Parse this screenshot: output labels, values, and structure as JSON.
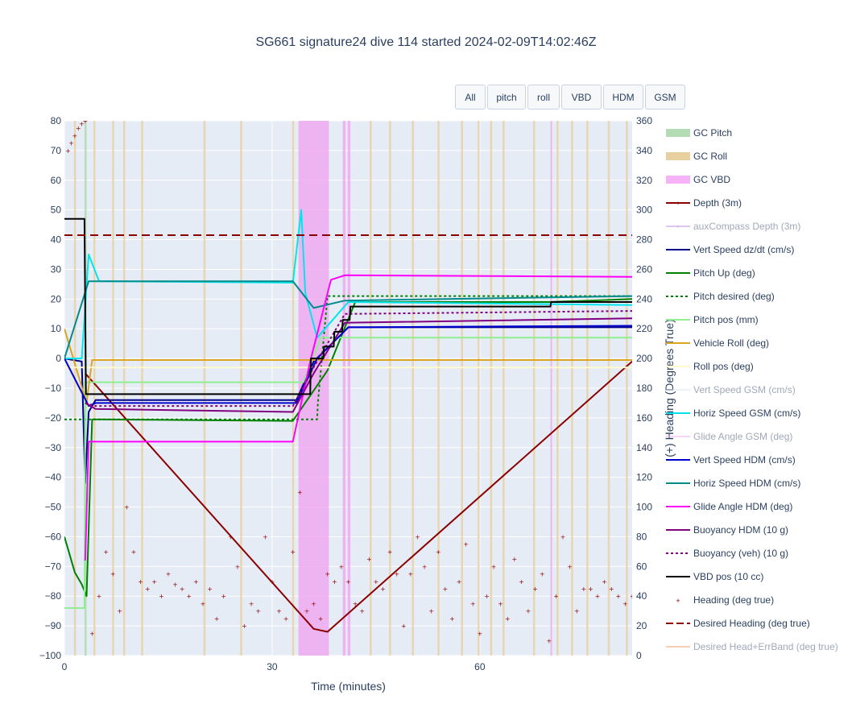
{
  "title": "SG661 signature24 dive 114 started 2024-02-09T14:02:46Z",
  "buttons": [
    "All",
    "pitch",
    "roll",
    "VBD",
    "HDM",
    "GSM"
  ],
  "chart_data": {
    "type": "line",
    "title": "SG661 signature24 dive 114 started 2024-02-09T14:02:46Z",
    "xlabel": "Time (minutes)",
    "ylabel": "",
    "y2label": "(+) Heading (Degrees True)",
    "xlim": [
      0,
      82
    ],
    "ylim": [
      -100,
      80
    ],
    "y2lim": [
      0,
      360
    ],
    "xticks": [
      0,
      30,
      60
    ],
    "yticks": [
      80,
      70,
      60,
      50,
      40,
      30,
      20,
      10,
      0,
      -10,
      -20,
      -30,
      -40,
      -50,
      -60,
      -70,
      -80,
      -90,
      -100
    ],
    "y2ticks": [
      360,
      340,
      320,
      300,
      280,
      260,
      240,
      220,
      200,
      180,
      160,
      140,
      120,
      100,
      80,
      60,
      40,
      20,
      0
    ],
    "legend_position": "right",
    "gc_vbd_bands": [
      [
        33.8,
        38.2
      ],
      [
        40.2,
        40.6
      ],
      [
        40.9,
        41.3
      ],
      [
        70.2,
        70.3
      ]
    ],
    "gc_pitch_bands": [
      [
        2.9,
        3.2
      ]
    ],
    "gc_roll_times": [
      1.5,
      4.3,
      7.0,
      8.6,
      11.2,
      20.2,
      25.5,
      33.0,
      44.2,
      47.0,
      50.3,
      54.0,
      57.4,
      59.8,
      61.6,
      63.4,
      67.8,
      71.2,
      73.3,
      75.5,
      78.6,
      81.2
    ],
    "series": [
      {
        "name": "Depth (3m)",
        "color": "#8b0000",
        "axis": "y",
        "x": [
          3.0,
          36.0,
          38.0,
          82.0
        ],
        "y": [
          -5,
          -91,
          -92,
          -1
        ]
      },
      {
        "name": "auxCompass Depth (3m)",
        "color": "#c090e0",
        "axis": "y",
        "x": [],
        "y": []
      },
      {
        "name": "Vert Speed dz/dt (cm/s)",
        "color": "#00008b",
        "axis": "y",
        "x": [
          0,
          2.5,
          3.0,
          3.5,
          4.5,
          33.5,
          36.0,
          41.0,
          82.0
        ],
        "y": [
          0,
          -1,
          -42,
          -18,
          -14,
          -14,
          -1,
          10.5,
          10.5
        ]
      },
      {
        "name": "Pitch Up (deg)",
        "color": "#008000",
        "axis": "y",
        "x": [
          0,
          1.5,
          2.5,
          3.2,
          4.0,
          33.0,
          38.0,
          42.0,
          70.0,
          82.0
        ],
        "y": [
          -60,
          -72,
          -76,
          -80,
          -20.5,
          -21,
          -4,
          19,
          19,
          20
        ]
      },
      {
        "name": "Pitch desired (deg)",
        "color": "#008000",
        "axis": "y",
        "dash": true,
        "x": [
          0,
          3.2,
          36.5,
          36.6,
          38.0,
          82.0
        ],
        "y": [
          -20.5,
          -20.5,
          -20.5,
          -15,
          21,
          21
        ]
      },
      {
        "name": "Pitch pos (mm)",
        "color": "#90ee90",
        "axis": "y",
        "x": [
          0,
          2.9,
          3.0,
          34.5,
          37.0,
          82.0
        ],
        "y": [
          -84,
          -84,
          -8,
          -8,
          7,
          7
        ]
      },
      {
        "name": "Vehicle Roll (deg)",
        "color": "#daa520",
        "axis": "y",
        "x": [
          0,
          3.2,
          4.0,
          36.0,
          82.0
        ],
        "y": [
          10,
          -15,
          -0.5,
          -0.5,
          -0.5
        ]
      },
      {
        "name": "Roll pos (deg)",
        "color": "#fffacd",
        "axis": "y",
        "x": [
          0,
          82.0
        ],
        "y": [
          -3,
          -3
        ]
      },
      {
        "name": "Vert Speed GSM (cm/s)",
        "color": "#d8e8f4",
        "axis": "y",
        "x": [],
        "y": []
      },
      {
        "name": "Horiz Speed GSM (cm/s)",
        "color": "#00e5ee",
        "axis": "y",
        "x": [
          0,
          2.5,
          3.5,
          5.0,
          33.0,
          34.2,
          34.8,
          36.5,
          41.0,
          82.0
        ],
        "y": [
          0,
          0,
          35,
          26,
          25.5,
          50,
          22,
          7,
          19,
          18
        ]
      },
      {
        "name": "Glide Angle GSM (deg)",
        "color": "#f0b0f0",
        "axis": "y",
        "x": [],
        "y": []
      },
      {
        "name": "Vert Speed HDM (cm/s)",
        "color": "#0000cd",
        "axis": "y",
        "x": [
          0,
          3.5,
          4.5,
          33.5,
          36.5,
          41.0,
          82.0
        ],
        "y": [
          0,
          -16,
          -15,
          -15,
          0,
          10.5,
          11
        ]
      },
      {
        "name": "Horiz Speed HDM (cm/s)",
        "color": "#008b8b",
        "axis": "y",
        "x": [
          0,
          3.5,
          5.0,
          33.0,
          36.0,
          40.5,
          82.0
        ],
        "y": [
          0,
          26,
          26,
          26,
          17,
          19.5,
          21
        ]
      },
      {
        "name": "Glide Angle HDM (deg)",
        "color": "#ff00ff",
        "axis": "y",
        "x": [
          3.0,
          3.5,
          4.5,
          33.0,
          35.5,
          38.5,
          40.5,
          82.0
        ],
        "y": [
          -68,
          -28,
          -28,
          -28,
          -1,
          26.5,
          28,
          27.5
        ]
      },
      {
        "name": "Buoyancy HDM (10 g)",
        "color": "#800080",
        "axis": "y",
        "x": [
          3.0,
          4.5,
          33.0,
          36.0,
          40.5,
          82.0
        ],
        "y": [
          -15,
          -17,
          -18,
          -5,
          12,
          13.5
        ]
      },
      {
        "name": "Buoyancy (veh) (10 g)",
        "color": "#800080",
        "axis": "y",
        "dash": true,
        "x": [
          3.0,
          4.5,
          33.0,
          36.0,
          40.5,
          82.0
        ],
        "y": [
          -15,
          -16,
          -16,
          -3,
          15,
          16
        ]
      },
      {
        "name": "VBD pos (10 cc)",
        "color": "#000000",
        "axis": "y",
        "x": [
          0,
          2.9,
          3.1,
          35.5,
          35.6,
          37.4,
          37.5,
          38.9,
          39.0,
          40.1,
          40.2,
          41.2,
          41.3,
          70.2,
          70.3,
          82.0
        ],
        "y": [
          47,
          47,
          -12,
          -12,
          0,
          0,
          4,
          4,
          9,
          9,
          13,
          13,
          17.5,
          17.5,
          19,
          19
        ]
      },
      {
        "name": "Heading (deg true)",
        "color": "#8b0000",
        "axis": "y2",
        "marker": true,
        "x": [
          0.5,
          1.0,
          1.5,
          2.0,
          2.5,
          3.0,
          4.0,
          5.0,
          6.0,
          7.0,
          8.0,
          9.0,
          10.0,
          11.0,
          12.0,
          13.0,
          14.0,
          15.0,
          16.0,
          17.0,
          18.0,
          19.0,
          20.0,
          21.0,
          22.0,
          23.0,
          24.0,
          25.0,
          26.0,
          27.0,
          28.0,
          29.0,
          30.0,
          31.0,
          32.0,
          33.0,
          34.0,
          35.0,
          36.0,
          37.0,
          38.0,
          39.0,
          40.0,
          41.0,
          42.0,
          43.0,
          44.0,
          45.0,
          46.0,
          47.0,
          48.0,
          49.0,
          50.0,
          51.0,
          52.0,
          53.0,
          54.0,
          55.0,
          56.0,
          57.0,
          58.0,
          59.0,
          60.0,
          61.0,
          62.0,
          63.0,
          64.0,
          65.0,
          66.0,
          67.0,
          68.0,
          69.0,
          70.0,
          71.0,
          72.0,
          73.0,
          74.0,
          75.0,
          76.0,
          77.0,
          78.0,
          79.0,
          80.0,
          81.0,
          82.0
        ],
        "y": [
          340,
          345,
          350,
          355,
          358,
          360,
          15,
          40,
          70,
          55,
          30,
          100,
          70,
          50,
          45,
          50,
          40,
          55,
          48,
          45,
          40,
          50,
          35,
          45,
          25,
          40,
          80,
          60,
          20,
          35,
          30,
          80,
          50,
          30,
          25,
          70,
          110,
          30,
          35,
          25,
          55,
          50,
          60,
          50,
          35,
          30,
          65,
          50,
          45,
          70,
          55,
          20,
          55,
          80,
          60,
          30,
          70,
          45,
          25,
          50,
          75,
          35,
          15,
          40,
          60,
          35,
          25,
          65,
          50,
          30,
          45,
          55,
          10,
          40,
          80,
          60,
          30,
          45,
          45,
          40,
          50,
          45,
          40,
          35,
          40
        ]
      },
      {
        "name": "Desired Heading (deg true)",
        "color": "#8b0000",
        "axis": "y2",
        "dash": true,
        "x": [
          0,
          82.0
        ],
        "y": [
          283,
          283
        ]
      },
      {
        "name": "Desired Head+ErrBand (deg true)",
        "color": "#f0a070",
        "axis": "y2",
        "x": [],
        "y": []
      }
    ],
    "legend": [
      {
        "label": "GC Pitch",
        "color": "#b4dcb4",
        "kind": "band",
        "enabled": true
      },
      {
        "label": "GC Roll",
        "color": "#e8cfa0",
        "kind": "band",
        "enabled": true
      },
      {
        "label": "GC VBD",
        "color": "#f7b3f7",
        "kind": "band",
        "enabled": true
      },
      {
        "label": "Depth (3m)",
        "color": "#8b0000",
        "kind": "line-marker",
        "enabled": true
      },
      {
        "label": "auxCompass Depth (3m)",
        "color": "#c090e0",
        "kind": "line-marker",
        "enabled": false
      },
      {
        "label": "Vert Speed dz/dt (cm/s)",
        "color": "#00008b",
        "kind": "line",
        "enabled": true
      },
      {
        "label": "Pitch Up (deg)",
        "color": "#008000",
        "kind": "line",
        "enabled": true
      },
      {
        "label": "Pitch desired (deg)",
        "color": "#008000",
        "kind": "dot",
        "enabled": true
      },
      {
        "label": "Pitch pos (mm)",
        "color": "#90ee90",
        "kind": "line",
        "enabled": true
      },
      {
        "label": "Vehicle Roll (deg)",
        "color": "#daa520",
        "kind": "line",
        "enabled": true
      },
      {
        "label": "Roll pos (deg)",
        "color": "#fffacd",
        "kind": "line",
        "enabled": true
      },
      {
        "label": "Vert Speed GSM (cm/s)",
        "color": "#d8e8f4",
        "kind": "line",
        "enabled": false
      },
      {
        "label": "Horiz Speed GSM (cm/s)",
        "color": "#00e5ee",
        "kind": "line",
        "enabled": true
      },
      {
        "label": "Glide Angle GSM (deg)",
        "color": "#f0b0f0",
        "kind": "line",
        "enabled": false
      },
      {
        "label": "Vert Speed HDM (cm/s)",
        "color": "#0000cd",
        "kind": "line",
        "enabled": true
      },
      {
        "label": "Horiz Speed HDM (cm/s)",
        "color": "#008b8b",
        "kind": "line",
        "enabled": true
      },
      {
        "label": "Glide Angle HDM (deg)",
        "color": "#ff00ff",
        "kind": "line",
        "enabled": true
      },
      {
        "label": "Buoyancy HDM (10 g)",
        "color": "#800080",
        "kind": "line",
        "enabled": true
      },
      {
        "label": "Buoyancy (veh) (10 g)",
        "color": "#800080",
        "kind": "dot",
        "enabled": true
      },
      {
        "label": "VBD pos (10 cc)",
        "color": "#000000",
        "kind": "line",
        "enabled": true
      },
      {
        "label": "Heading (deg true)",
        "color": "#8b0000",
        "kind": "marker",
        "enabled": true
      },
      {
        "label": "Desired Heading (deg true)",
        "color": "#8b0000",
        "kind": "dash",
        "enabled": true
      },
      {
        "label": "Desired Head+ErrBand (deg true)",
        "color": "#f0a070",
        "kind": "line",
        "enabled": false
      }
    ]
  }
}
